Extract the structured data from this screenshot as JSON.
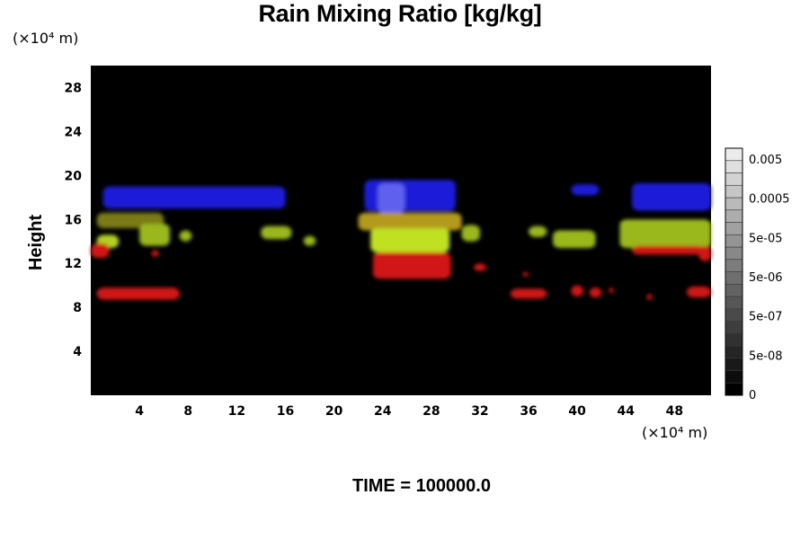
{
  "chart_data": {
    "type": "heatmap",
    "title": "Rain Mixing Ratio [kg/kg]",
    "ylabel": "Height",
    "y_unit": "(×10⁴ m)",
    "x_unit": "(×10⁴ m)",
    "footer": "TIME = 100000.0",
    "xlim": [
      0,
      51
    ],
    "ylim": [
      0,
      30
    ],
    "xticks": [
      4,
      8,
      12,
      16,
      20,
      24,
      28,
      32,
      36,
      40,
      44,
      48
    ],
    "yticks": [
      4,
      8,
      12,
      16,
      20,
      24,
      28
    ],
    "background": "#000000",
    "colorbar": {
      "ticks": [
        "0",
        "5e-08",
        "5e-07",
        "5e-06",
        "5e-05",
        "0.0005",
        "0.005"
      ],
      "levels": 20
    },
    "blobs": [
      {
        "color": "#1a1ad8",
        "x0": 1.0,
        "x1": 16.0,
        "y0": 17.0,
        "y1": 19.0
      },
      {
        "color": "#1a1ad8",
        "x0": 22.5,
        "x1": 30.0,
        "y0": 16.8,
        "y1": 19.6
      },
      {
        "color": "#6060ee",
        "x0": 23.6,
        "x1": 25.8,
        "y0": 16.5,
        "y1": 19.3
      },
      {
        "color": "#1a1ad8",
        "x0": 39.5,
        "x1": 41.8,
        "y0": 18.2,
        "y1": 19.2
      },
      {
        "color": "#1a1ad8",
        "x0": 44.5,
        "x1": 51.0,
        "y0": 16.8,
        "y1": 19.3
      },
      {
        "color": "#7a7a18",
        "x0": 0.5,
        "x1": 6.0,
        "y0": 15.2,
        "y1": 16.6
      },
      {
        "color": "#b4d020",
        "x0": 0.5,
        "x1": 2.3,
        "y0": 13.4,
        "y1": 14.6
      },
      {
        "color": "#9ab81e",
        "x0": 4.0,
        "x1": 6.5,
        "y0": 13.6,
        "y1": 15.6
      },
      {
        "color": "#9ab81e",
        "x0": 7.3,
        "x1": 8.3,
        "y0": 14.0,
        "y1": 15.0
      },
      {
        "color": "#9ab81e",
        "x0": 14.0,
        "x1": 16.5,
        "y0": 14.2,
        "y1": 15.4
      },
      {
        "color": "#9ab81e",
        "x0": 17.5,
        "x1": 18.5,
        "y0": 13.6,
        "y1": 14.5
      },
      {
        "color": "#b49a1e",
        "x0": 22.0,
        "x1": 30.5,
        "y0": 15.0,
        "y1": 16.6
      },
      {
        "color": "#c0e020",
        "x0": 23.0,
        "x1": 29.5,
        "y0": 13.0,
        "y1": 15.2
      },
      {
        "color": "#9ab81e",
        "x0": 30.5,
        "x1": 32.0,
        "y0": 14.0,
        "y1": 15.5
      },
      {
        "color": "#9ab81e",
        "x0": 36.0,
        "x1": 37.5,
        "y0": 14.4,
        "y1": 15.4
      },
      {
        "color": "#9ab81e",
        "x0": 38.0,
        "x1": 41.5,
        "y0": 13.4,
        "y1": 15.0
      },
      {
        "color": "#9ab81e",
        "x0": 43.5,
        "x1": 51.0,
        "y0": 13.4,
        "y1": 16.0
      },
      {
        "color": "#d01818",
        "x0": 0.0,
        "x1": 1.5,
        "y0": 12.5,
        "y1": 13.8
      },
      {
        "color": "#d01818",
        "x0": 5.0,
        "x1": 5.6,
        "y0": 12.6,
        "y1": 13.2
      },
      {
        "color": "#d01818",
        "x0": 23.2,
        "x1": 29.6,
        "y0": 10.6,
        "y1": 13.0
      },
      {
        "color": "#d01818",
        "x0": 31.5,
        "x1": 32.5,
        "y0": 11.3,
        "y1": 12.0
      },
      {
        "color": "#d01818",
        "x0": 35.5,
        "x1": 36.0,
        "y0": 10.8,
        "y1": 11.2
      },
      {
        "color": "#d01818",
        "x0": 44.5,
        "x1": 50.5,
        "y0": 12.8,
        "y1": 13.6
      },
      {
        "color": "#d01818",
        "x0": 50.0,
        "x1": 51.0,
        "y0": 12.2,
        "y1": 13.6
      },
      {
        "color": "#d01818",
        "x0": 0.5,
        "x1": 7.3,
        "y0": 8.7,
        "y1": 9.8
      },
      {
        "color": "#d01818",
        "x0": 34.5,
        "x1": 37.5,
        "y0": 8.8,
        "y1": 9.7
      },
      {
        "color": "#d01818",
        "x0": 39.5,
        "x1": 40.5,
        "y0": 9.0,
        "y1": 10.0
      },
      {
        "color": "#d01818",
        "x0": 41.0,
        "x1": 42.0,
        "y0": 8.9,
        "y1": 9.8
      },
      {
        "color": "#d01818",
        "x0": 42.6,
        "x1": 43.0,
        "y0": 9.3,
        "y1": 9.8
      },
      {
        "color": "#d01818",
        "x0": 45.7,
        "x1": 46.2,
        "y0": 8.7,
        "y1": 9.2
      },
      {
        "color": "#d01818",
        "x0": 49.0,
        "x1": 51.0,
        "y0": 8.9,
        "y1": 9.9
      }
    ]
  }
}
